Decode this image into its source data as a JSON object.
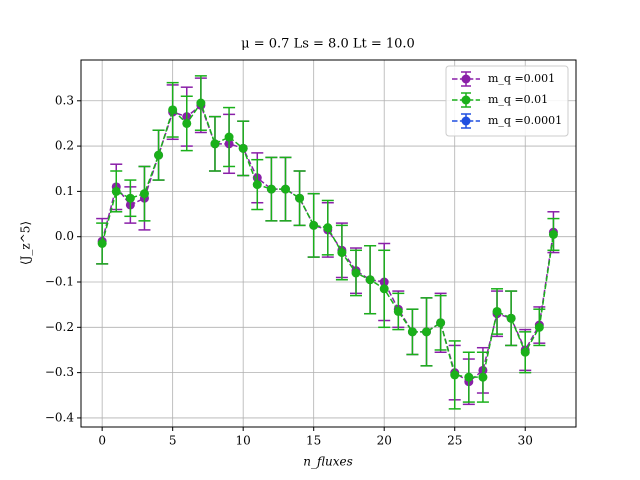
{
  "chart_data": {
    "type": "errorbar-line",
    "title": "μ = 0.7 Ls = 8.0 Lt = 10.0",
    "xlabel": "n_fluxes",
    "ylabel": "⟨J_z^5⟩",
    "x": [
      0,
      1,
      2,
      3,
      4,
      5,
      6,
      7,
      8,
      9,
      10,
      11,
      12,
      13,
      14,
      15,
      16,
      17,
      18,
      19,
      20,
      21,
      22,
      23,
      24,
      25,
      26,
      27,
      28,
      29,
      30,
      31,
      32
    ],
    "xlim": [
      -1.5,
      33.6
    ],
    "xticks": [
      0,
      5,
      10,
      15,
      20,
      25,
      30
    ],
    "ylim": [
      -0.42,
      0.39
    ],
    "yticks": [
      {
        "value": -0.4,
        "label": "−0.4"
      },
      {
        "value": -0.3,
        "label": "−0.3"
      },
      {
        "value": -0.2,
        "label": "−0.2"
      },
      {
        "value": -0.1,
        "label": "−0.1"
      },
      {
        "value": 0,
        "label": "0.0"
      },
      0.1,
      0.2,
      0.3
    ],
    "grid": true,
    "legend": "upper right",
    "series": [
      {
        "name": "m_q =0.001",
        "color": "#8a1fa8",
        "values": [
          -0.01,
          0.11,
          0.07,
          0.085,
          0.18,
          0.275,
          0.265,
          0.29,
          0.205,
          0.205,
          0.195,
          0.13,
          0.105,
          0.105,
          0.085,
          0.025,
          0.015,
          -0.03,
          -0.075,
          -0.095,
          -0.1,
          -0.16,
          -0.21,
          -0.21,
          -0.19,
          -0.3,
          -0.32,
          -0.295,
          -0.17,
          -0.18,
          -0.25,
          -0.195,
          0.01
        ],
        "errors": [
          0.05,
          0.05,
          0.04,
          0.07,
          0.055,
          0.06,
          0.065,
          0.06,
          0.06,
          0.065,
          0.06,
          0.055,
          0.07,
          0.07,
          0.06,
          0.07,
          0.06,
          0.06,
          0.05,
          0.075,
          0.085,
          0.04,
          0.05,
          0.075,
          0.065,
          0.06,
          0.05,
          0.05,
          0.05,
          0.06,
          0.045,
          0.04,
          0.045
        ]
      },
      {
        "name": "m_q =0.01",
        "color": "#1ab01a",
        "values": [
          -0.015,
          0.1,
          0.085,
          0.095,
          0.18,
          0.28,
          0.25,
          0.295,
          0.205,
          0.22,
          0.195,
          0.115,
          0.105,
          0.105,
          0.085,
          0.025,
          0.02,
          -0.035,
          -0.08,
          -0.095,
          -0.115,
          -0.165,
          -0.21,
          -0.21,
          -0.19,
          -0.305,
          -0.31,
          -0.31,
          -0.165,
          -0.18,
          -0.255,
          -0.2,
          0.005
        ],
        "errors": [
          0.045,
          0.045,
          0.04,
          0.06,
          0.055,
          0.06,
          0.06,
          0.06,
          0.06,
          0.065,
          0.06,
          0.055,
          0.07,
          0.07,
          0.06,
          0.07,
          0.06,
          0.06,
          0.05,
          0.075,
          0.085,
          0.04,
          0.05,
          0.075,
          0.06,
          0.075,
          0.055,
          0.055,
          0.05,
          0.06,
          0.045,
          0.04,
          0.035
        ]
      },
      {
        "name": "m_q =0.0001",
        "color": "#1f4fe0",
        "values": [
          null,
          null,
          null,
          null,
          null,
          null,
          null,
          null,
          null,
          null,
          null,
          null,
          null,
          null,
          null,
          null,
          null,
          null,
          null,
          null,
          null,
          null,
          null,
          null,
          null,
          null,
          null,
          null,
          null,
          null,
          null,
          null,
          null
        ],
        "errors": [
          null,
          null,
          null,
          null,
          null,
          null,
          null,
          null,
          null,
          null,
          null,
          null,
          null,
          null,
          null,
          null,
          null,
          null,
          null,
          null,
          null,
          null,
          null,
          null,
          null,
          null,
          null,
          null,
          null,
          null,
          null,
          null,
          null
        ]
      }
    ]
  }
}
